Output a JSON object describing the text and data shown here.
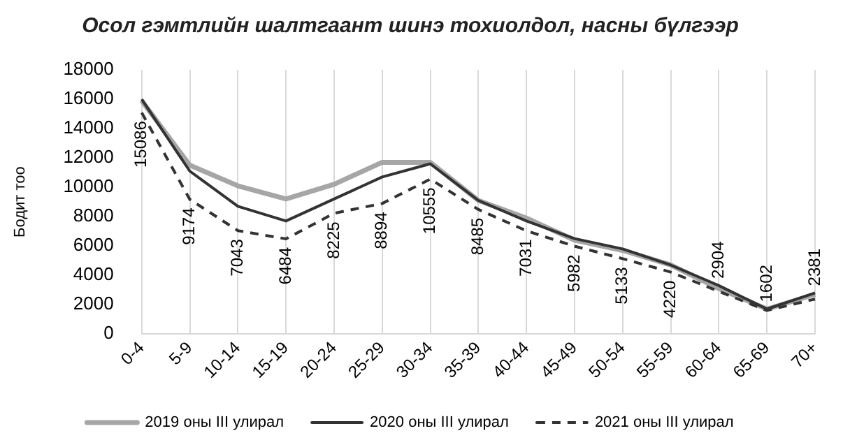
{
  "chart_data": {
    "type": "line",
    "title": "Осол гэмтлийн шалтгаант шинэ тохиолдол, насны бүлгээр",
    "ylabel": "Бодит тоо",
    "categories": [
      "0-4",
      "5-9",
      "10-14",
      "15-19",
      "20-24",
      "25-29",
      "30-34",
      "35-39",
      "40-44",
      "45-49",
      "50-54",
      "55-59",
      "60-64",
      "65-69",
      "70+"
    ],
    "series": [
      {
        "name": "2019 оны III улирал",
        "color": "#a6a6a6",
        "line_style": "solid",
        "values": [
          15900,
          11500,
          10100,
          9200,
          10200,
          11700,
          11700,
          9100,
          7900,
          6400,
          5700,
          4700,
          3100,
          1700,
          2700
        ]
      },
      {
        "name": "2020 оны III улирал",
        "color": "#333333",
        "line_style": "solid",
        "values": [
          16000,
          11100,
          8700,
          7700,
          9200,
          10700,
          11600,
          9100,
          7700,
          6500,
          5800,
          4700,
          3300,
          1700,
          2800
        ]
      },
      {
        "name": "2021 оны III улирал",
        "color": "#333333",
        "line_style": "dashed",
        "values": [
          15086,
          9174,
          7043,
          6484,
          8225,
          8894,
          10555,
          8485,
          7031,
          5982,
          5133,
          4220,
          2904,
          1602,
          2381
        ],
        "value_labels": [
          "15086",
          "9174",
          "7043",
          "6484",
          "8225",
          "8894",
          "10555",
          "8485",
          "7031",
          "5982",
          "5133",
          "4220",
          "2904",
          "1602",
          "2381"
        ]
      }
    ],
    "ylim": [
      0,
      18000
    ],
    "yticks": [
      0,
      2000,
      4000,
      6000,
      8000,
      10000,
      12000,
      14000,
      16000,
      18000
    ],
    "grid": "x",
    "legend": "bottom",
    "marker": "none"
  }
}
